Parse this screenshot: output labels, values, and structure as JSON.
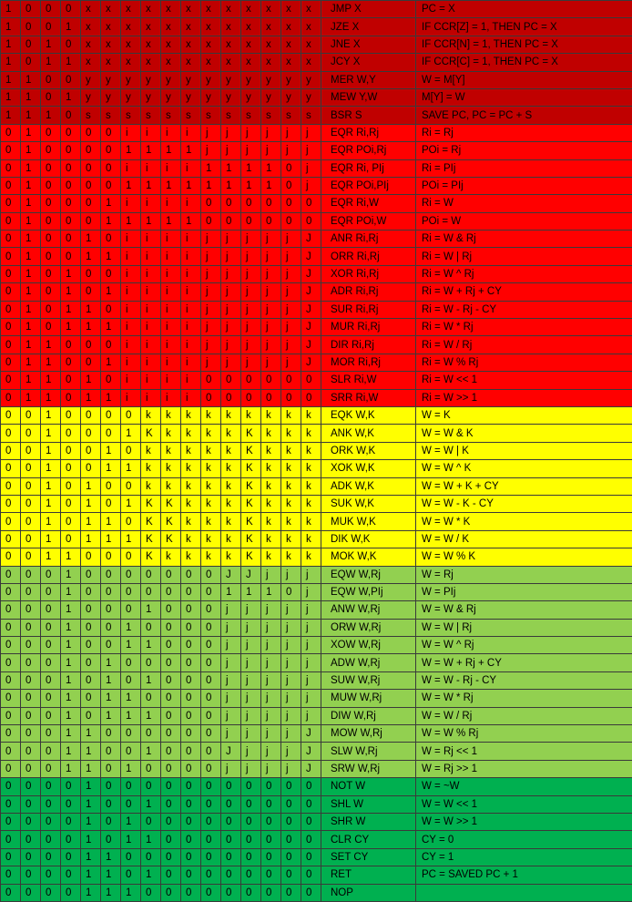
{
  "colors": {
    "branch": "#c00000",
    "register": "#ff0000",
    "immediate": "#ffff00",
    "w_register": "#92d050",
    "misc": "#00b050",
    "grid": "#3a3a3a"
  },
  "rows": [
    {
      "group": "branch",
      "bits": [
        "1",
        "0",
        "0",
        "0",
        "x",
        "x",
        "x",
        "x",
        "x",
        "x",
        "x",
        "x",
        "x",
        "x",
        "x",
        "x"
      ],
      "mnemonic": "JMP X",
      "operation": "PC = X"
    },
    {
      "group": "branch",
      "bits": [
        "1",
        "0",
        "0",
        "1",
        "x",
        "x",
        "x",
        "x",
        "x",
        "x",
        "x",
        "x",
        "x",
        "x",
        "x",
        "x"
      ],
      "mnemonic": "JZE X",
      "operation": "IF CCR[Z] = 1, THEN PC = X"
    },
    {
      "group": "branch",
      "bits": [
        "1",
        "0",
        "1",
        "0",
        "x",
        "x",
        "x",
        "x",
        "x",
        "x",
        "x",
        "x",
        "x",
        "x",
        "x",
        "x"
      ],
      "mnemonic": "JNE X",
      "operation": "IF CCR[N] = 1, THEN PC = X"
    },
    {
      "group": "branch",
      "bits": [
        "1",
        "0",
        "1",
        "1",
        "x",
        "x",
        "x",
        "x",
        "x",
        "x",
        "x",
        "x",
        "x",
        "x",
        "x",
        "x"
      ],
      "mnemonic": "JCY X",
      "operation": "IF CCR[C] = 1, THEN PC = X"
    },
    {
      "group": "branch",
      "bits": [
        "1",
        "1",
        "0",
        "0",
        "y",
        "y",
        "y",
        "y",
        "y",
        "y",
        "y",
        "y",
        "y",
        "y",
        "y",
        "y"
      ],
      "mnemonic": "MER W,Y",
      "operation": "W = M[Y]"
    },
    {
      "group": "branch",
      "bits": [
        "1",
        "1",
        "0",
        "1",
        "y",
        "y",
        "y",
        "y",
        "y",
        "y",
        "y",
        "y",
        "y",
        "y",
        "y",
        "y"
      ],
      "mnemonic": "MEW Y,W",
      "operation": "M[Y] = W"
    },
    {
      "group": "branch",
      "bits": [
        "1",
        "1",
        "1",
        "0",
        "s",
        "s",
        "s",
        "s",
        "s",
        "s",
        "s",
        "s",
        "s",
        "s",
        "s",
        "s"
      ],
      "mnemonic": "BSR S",
      "operation": "SAVE PC, PC = PC + S"
    },
    {
      "group": "reg",
      "bits": [
        "0",
        "1",
        "0",
        "0",
        "0",
        "0",
        "i",
        "i",
        "i",
        "i",
        "j",
        "j",
        "j",
        "j",
        "j",
        "j"
      ],
      "mnemonic": "EQR Ri,Rj",
      "operation": "Ri = Rj"
    },
    {
      "group": "reg",
      "bits": [
        "0",
        "1",
        "0",
        "0",
        "0",
        "0",
        "1",
        "1",
        "1",
        "1",
        "j",
        "j",
        "j",
        "j",
        "j",
        "j"
      ],
      "mnemonic": "EQR POi,Rj",
      "operation": "POi = Rj"
    },
    {
      "group": "reg",
      "bits": [
        "0",
        "1",
        "0",
        "0",
        "0",
        "0",
        "i",
        "i",
        "i",
        "i",
        "1",
        "1",
        "1",
        "1",
        "0",
        "j"
      ],
      "mnemonic": "EQR Ri, PIj",
      "operation": "Ri = PIj"
    },
    {
      "group": "reg",
      "bits": [
        "0",
        "1",
        "0",
        "0",
        "0",
        "0",
        "1",
        "1",
        "1",
        "1",
        "1",
        "1",
        "1",
        "1",
        "0",
        "j"
      ],
      "mnemonic": "EQR POi,PIj",
      "operation": "POi = PIj"
    },
    {
      "group": "reg",
      "bits": [
        "0",
        "1",
        "0",
        "0",
        "0",
        "1",
        "i",
        "i",
        "i",
        "i",
        "0",
        "0",
        "0",
        "0",
        "0",
        "0"
      ],
      "mnemonic": "EQR Ri,W",
      "operation": "Ri = W"
    },
    {
      "group": "reg",
      "bits": [
        "0",
        "1",
        "0",
        "0",
        "0",
        "1",
        "1",
        "1",
        "1",
        "1",
        "0",
        "0",
        "0",
        "0",
        "0",
        "0"
      ],
      "mnemonic": "EQR POi,W",
      "operation": "POi = W"
    },
    {
      "group": "reg",
      "bits": [
        "0",
        "1",
        "0",
        "0",
        "1",
        "0",
        "i",
        "i",
        "i",
        "i",
        "j",
        "j",
        "j",
        "j",
        "j",
        "J"
      ],
      "mnemonic": "ANR Ri,Rj",
      "operation": "Ri = W & Rj"
    },
    {
      "group": "reg",
      "bits": [
        "0",
        "1",
        "0",
        "0",
        "1",
        "1",
        "i",
        "i",
        "i",
        "i",
        "j",
        "j",
        "j",
        "j",
        "j",
        "J"
      ],
      "mnemonic": "ORR Ri,Rj",
      "operation": "Ri = W | Rj"
    },
    {
      "group": "reg",
      "bits": [
        "0",
        "1",
        "0",
        "1",
        "0",
        "0",
        "i",
        "i",
        "i",
        "i",
        "j",
        "j",
        "j",
        "j",
        "j",
        "J"
      ],
      "mnemonic": "XOR Ri,Rj",
      "operation": "Ri = W ^ Rj"
    },
    {
      "group": "reg",
      "bits": [
        "0",
        "1",
        "0",
        "1",
        "0",
        "1",
        "i",
        "i",
        "i",
        "i",
        "j",
        "j",
        "j",
        "j",
        "j",
        "J"
      ],
      "mnemonic": "ADR Ri,Rj",
      "operation": "Ri = W + Rj + CY"
    },
    {
      "group": "reg",
      "bits": [
        "0",
        "1",
        "0",
        "1",
        "1",
        "0",
        "i",
        "i",
        "i",
        "i",
        "j",
        "j",
        "j",
        "j",
        "j",
        "J"
      ],
      "mnemonic": "SUR Ri,Rj",
      "operation": "Ri = W - Rj - CY"
    },
    {
      "group": "reg",
      "bits": [
        "0",
        "1",
        "0",
        "1",
        "1",
        "1",
        "i",
        "i",
        "i",
        "i",
        "j",
        "j",
        "j",
        "j",
        "j",
        "J"
      ],
      "mnemonic": "MUR Ri,Rj",
      "operation": "Ri = W * Rj"
    },
    {
      "group": "reg",
      "bits": [
        "0",
        "1",
        "1",
        "0",
        "0",
        "0",
        "i",
        "i",
        "i",
        "i",
        "j",
        "j",
        "j",
        "j",
        "j",
        "J"
      ],
      "mnemonic": "DIR Ri,Rj",
      "operation": "Ri = W / Rj"
    },
    {
      "group": "reg",
      "bits": [
        "0",
        "1",
        "1",
        "0",
        "0",
        "1",
        "i",
        "i",
        "i",
        "i",
        "j",
        "j",
        "j",
        "j",
        "j",
        "J"
      ],
      "mnemonic": "MOR Ri,Rj",
      "operation": "Ri = W % Rj"
    },
    {
      "group": "reg",
      "bits": [
        "0",
        "1",
        "1",
        "0",
        "1",
        "0",
        "i",
        "i",
        "i",
        "i",
        "0",
        "0",
        "0",
        "0",
        "0",
        "0"
      ],
      "mnemonic": "SLR Ri,W",
      "operation": "Ri = W << 1"
    },
    {
      "group": "reg",
      "bits": [
        "0",
        "1",
        "1",
        "0",
        "1",
        "1",
        "i",
        "i",
        "i",
        "i",
        "0",
        "0",
        "0",
        "0",
        "0",
        "0"
      ],
      "mnemonic": "SRR Ri,W",
      "operation": "Ri = W >> 1"
    },
    {
      "group": "imm",
      "bits": [
        "0",
        "0",
        "1",
        "0",
        "0",
        "0",
        "0",
        "k",
        "k",
        "k",
        "k",
        "k",
        "k",
        "k",
        "k",
        "k"
      ],
      "mnemonic": "EQK W,K",
      "operation": "W = K"
    },
    {
      "group": "imm",
      "bits": [
        "0",
        "0",
        "1",
        "0",
        "0",
        "0",
        "1",
        "K",
        "k",
        "k",
        "k",
        "k",
        "K",
        "k",
        "k",
        "k"
      ],
      "mnemonic": "ANK W,K",
      "operation": "W = W & K"
    },
    {
      "group": "imm",
      "bits": [
        "0",
        "0",
        "1",
        "0",
        "0",
        "1",
        "0",
        "k",
        "k",
        "k",
        "k",
        "k",
        "K",
        "k",
        "k",
        "k"
      ],
      "mnemonic": "ORK W,K",
      "operation": "W = W | K"
    },
    {
      "group": "imm",
      "bits": [
        "0",
        "0",
        "1",
        "0",
        "0",
        "1",
        "1",
        "k",
        "k",
        "k",
        "k",
        "k",
        "K",
        "k",
        "k",
        "k"
      ],
      "mnemonic": "XOK W,K",
      "operation": "W = W ^ K"
    },
    {
      "group": "imm",
      "bits": [
        "0",
        "0",
        "1",
        "0",
        "1",
        "0",
        "0",
        "k",
        "k",
        "k",
        "k",
        "k",
        "K",
        "k",
        "k",
        "k"
      ],
      "mnemonic": "ADK W,K",
      "operation": "W = W + K + CY"
    },
    {
      "group": "imm",
      "bits": [
        "0",
        "0",
        "1",
        "0",
        "1",
        "0",
        "1",
        "K",
        "K",
        "k",
        "k",
        "k",
        "K",
        "k",
        "k",
        "k"
      ],
      "mnemonic": "SUK W,K",
      "operation": "W = W - K - CY"
    },
    {
      "group": "imm",
      "bits": [
        "0",
        "0",
        "1",
        "0",
        "1",
        "1",
        "0",
        "K",
        "K",
        "k",
        "k",
        "k",
        "K",
        "k",
        "k",
        "k"
      ],
      "mnemonic": "MUK W,K",
      "operation": "W = W * K"
    },
    {
      "group": "imm",
      "bits": [
        "0",
        "0",
        "1",
        "0",
        "1",
        "1",
        "1",
        "K",
        "K",
        "k",
        "k",
        "k",
        "K",
        "k",
        "k",
        "k"
      ],
      "mnemonic": "DIK W,K",
      "operation": "W = W / K"
    },
    {
      "group": "imm",
      "bits": [
        "0",
        "0",
        "1",
        "1",
        "0",
        "0",
        "0",
        "K",
        "k",
        "k",
        "k",
        "k",
        "K",
        "k",
        "k",
        "k"
      ],
      "mnemonic": "MOK W,K",
      "operation": "W = W % K"
    },
    {
      "group": "wreg",
      "bits": [
        "0",
        "0",
        "0",
        "1",
        "0",
        "0",
        "0",
        "0",
        "0",
        "0",
        "0",
        "J",
        "J",
        "j",
        "j",
        "j"
      ],
      "mnemonic": "EQW W,Rj",
      "operation": "W = Rj"
    },
    {
      "group": "wreg",
      "bits": [
        "0",
        "0",
        "0",
        "1",
        "0",
        "0",
        "0",
        "0",
        "0",
        "0",
        "0",
        "1",
        "1",
        "1",
        "0",
        "j"
      ],
      "mnemonic": "EQW W,PIj",
      "operation": "W = PIj"
    },
    {
      "group": "wreg",
      "bits": [
        "0",
        "0",
        "0",
        "1",
        "0",
        "0",
        "0",
        "1",
        "0",
        "0",
        "0",
        "j",
        "j",
        "j",
        "j",
        "j"
      ],
      "mnemonic": "ANW W,Rj",
      "operation": "W = W & Rj"
    },
    {
      "group": "wreg",
      "bits": [
        "0",
        "0",
        "0",
        "1",
        "0",
        "0",
        "1",
        "0",
        "0",
        "0",
        "0",
        "j",
        "j",
        "j",
        "j",
        "j"
      ],
      "mnemonic": "ORW W,Rj",
      "operation": "W = W | Rj"
    },
    {
      "group": "wreg",
      "bits": [
        "0",
        "0",
        "0",
        "1",
        "0",
        "0",
        "1",
        "1",
        "0",
        "0",
        "0",
        "j",
        "j",
        "j",
        "j",
        "j"
      ],
      "mnemonic": "XOW W,Rj",
      "operation": "W = W ^ Rj"
    },
    {
      "group": "wreg",
      "bits": [
        "0",
        "0",
        "0",
        "1",
        "0",
        "1",
        "0",
        "0",
        "0",
        "0",
        "0",
        "j",
        "j",
        "j",
        "j",
        "j"
      ],
      "mnemonic": "ADW W,Rj",
      "operation": "W = W + Rj + CY"
    },
    {
      "group": "wreg",
      "bits": [
        "0",
        "0",
        "0",
        "1",
        "0",
        "1",
        "0",
        "1",
        "0",
        "0",
        "0",
        "j",
        "j",
        "j",
        "j",
        "j"
      ],
      "mnemonic": "SUW W,Rj",
      "operation": "W = W - Rj - CY"
    },
    {
      "group": "wreg",
      "bits": [
        "0",
        "0",
        "0",
        "1",
        "0",
        "1",
        "1",
        "0",
        "0",
        "0",
        "0",
        "j",
        "j",
        "j",
        "j",
        "j"
      ],
      "mnemonic": "MUW W,Rj",
      "operation": "W = W * Rj"
    },
    {
      "group": "wreg",
      "bits": [
        "0",
        "0",
        "0",
        "1",
        "0",
        "1",
        "1",
        "1",
        "0",
        "0",
        "0",
        "j",
        "j",
        "j",
        "j",
        "j"
      ],
      "mnemonic": "DIW W,Rj",
      "operation": "W = W / Rj"
    },
    {
      "group": "wreg",
      "bits": [
        "0",
        "0",
        "0",
        "1",
        "1",
        "0",
        "0",
        "0",
        "0",
        "0",
        "0",
        "j",
        "j",
        "j",
        "j",
        "J"
      ],
      "mnemonic": "MOW W,Rj",
      "operation": "W = W % Rj"
    },
    {
      "group": "wreg",
      "bits": [
        "0",
        "0",
        "0",
        "1",
        "1",
        "0",
        "0",
        "1",
        "0",
        "0",
        "0",
        "J",
        "j",
        "j",
        "j",
        "J"
      ],
      "mnemonic": "SLW W,Rj",
      "operation": "W = Rj << 1"
    },
    {
      "group": "wreg",
      "bits": [
        "0",
        "0",
        "0",
        "1",
        "1",
        "0",
        "1",
        "0",
        "0",
        "0",
        "0",
        "j",
        "j",
        "j",
        "j",
        "J"
      ],
      "mnemonic": "SRW W,Rj",
      "operation": "W = Rj >> 1"
    },
    {
      "group": "misc",
      "bits": [
        "0",
        "0",
        "0",
        "0",
        "1",
        "0",
        "0",
        "0",
        "0",
        "0",
        "0",
        "0",
        "0",
        "0",
        "0",
        "0"
      ],
      "mnemonic": "NOT W",
      "operation": "W = ~W"
    },
    {
      "group": "misc",
      "bits": [
        "0",
        "0",
        "0",
        "0",
        "1",
        "0",
        "0",
        "1",
        "0",
        "0",
        "0",
        "0",
        "0",
        "0",
        "0",
        "0"
      ],
      "mnemonic": "SHL W",
      "operation": "W = W << 1"
    },
    {
      "group": "misc",
      "bits": [
        "0",
        "0",
        "0",
        "0",
        "1",
        "0",
        "1",
        "0",
        "0",
        "0",
        "0",
        "0",
        "0",
        "0",
        "0",
        "0"
      ],
      "mnemonic": "SHR W",
      "operation": "W = W >> 1"
    },
    {
      "group": "misc",
      "bits": [
        "0",
        "0",
        "0",
        "0",
        "1",
        "0",
        "1",
        "1",
        "0",
        "0",
        "0",
        "0",
        "0",
        "0",
        "0",
        "0"
      ],
      "mnemonic": "CLR CY",
      "operation": "CY = 0"
    },
    {
      "group": "misc",
      "bits": [
        "0",
        "0",
        "0",
        "0",
        "1",
        "1",
        "0",
        "0",
        "0",
        "0",
        "0",
        "0",
        "0",
        "0",
        "0",
        "0"
      ],
      "mnemonic": "SET CY",
      "operation": "CY = 1"
    },
    {
      "group": "misc",
      "bits": [
        "0",
        "0",
        "0",
        "0",
        "1",
        "1",
        "0",
        "1",
        "0",
        "0",
        "0",
        "0",
        "0",
        "0",
        "0",
        "0"
      ],
      "mnemonic": "RET",
      "operation": "PC = SAVED PC + 1"
    },
    {
      "group": "misc",
      "bits": [
        "0",
        "0",
        "0",
        "0",
        "1",
        "1",
        "1",
        "0",
        "0",
        "0",
        "0",
        "0",
        "0",
        "0",
        "0",
        "0"
      ],
      "mnemonic": "NOP",
      "operation": ""
    }
  ]
}
